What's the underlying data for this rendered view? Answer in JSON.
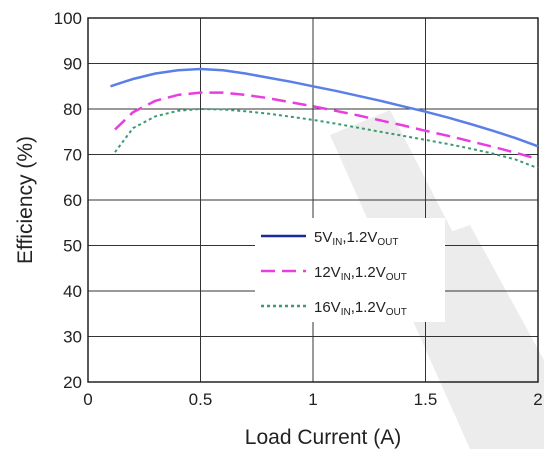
{
  "chart_data": {
    "type": "line",
    "title": "",
    "xlabel": "Load Current (A)",
    "ylabel": "Efficiency (%)",
    "xlim": [
      0,
      2
    ],
    "ylim": [
      20,
      100
    ],
    "x_ticks": [
      "0",
      "0.5",
      "1",
      "1.5",
      "2"
    ],
    "y_ticks": [
      "20",
      "30",
      "40",
      "50",
      "60",
      "70",
      "80",
      "90",
      "100"
    ],
    "grid": true,
    "legend_position": "center-right",
    "series": [
      {
        "name": "5V_IN,1.2V_OUT",
        "legend": {
          "a": "5V",
          "b": "IN",
          "c": ",1.2V",
          "d": "OUT"
        },
        "color": "#5b7fe8",
        "line_style": "solid",
        "x": [
          0.1,
          0.2,
          0.3,
          0.4,
          0.5,
          0.6,
          0.7,
          0.8,
          0.9,
          1.0,
          1.1,
          1.2,
          1.3,
          1.4,
          1.5,
          1.6,
          1.7,
          1.8,
          1.9,
          2.0
        ],
        "values": [
          85.0,
          86.6,
          87.8,
          88.5,
          88.8,
          88.5,
          87.8,
          86.9,
          86.0,
          85.0,
          84.0,
          82.9,
          81.8,
          80.6,
          79.4,
          78.1,
          76.7,
          75.2,
          73.6,
          71.8
        ]
      },
      {
        "name": "12V_IN,1.2V_OUT",
        "legend": {
          "a": "12V",
          "b": "IN",
          "c": ",1.2V",
          "d": "OUT"
        },
        "color": "#e83ee0",
        "line_style": "dashed",
        "x": [
          0.12,
          0.2,
          0.3,
          0.4,
          0.5,
          0.6,
          0.7,
          0.8,
          0.9,
          1.0,
          1.1,
          1.2,
          1.3,
          1.4,
          1.5,
          1.6,
          1.7,
          1.8,
          1.9,
          2.0
        ],
        "values": [
          75.5,
          79.3,
          81.8,
          83.1,
          83.6,
          83.6,
          83.1,
          82.4,
          81.5,
          80.6,
          79.6,
          78.6,
          77.5,
          76.4,
          75.2,
          74.1,
          72.9,
          71.7,
          70.4,
          69.0
        ]
      },
      {
        "name": "16V_IN,1.2V_OUT",
        "legend": {
          "a": "16V",
          "b": "IN",
          "c": ",1.2V",
          "d": "OUT"
        },
        "color": "#3d9a6f",
        "line_style": "dotted",
        "x": [
          0.12,
          0.2,
          0.3,
          0.4,
          0.5,
          0.6,
          0.7,
          0.8,
          0.9,
          1.0,
          1.1,
          1.2,
          1.3,
          1.4,
          1.5,
          1.6,
          1.7,
          1.8,
          1.9,
          2.0
        ],
        "values": [
          70.5,
          75.8,
          78.4,
          79.6,
          80.0,
          79.9,
          79.5,
          79.0,
          78.3,
          77.6,
          76.8,
          75.9,
          75.0,
          74.1,
          73.2,
          72.3,
          71.3,
          70.2,
          68.9,
          67.0
        ]
      }
    ]
  }
}
